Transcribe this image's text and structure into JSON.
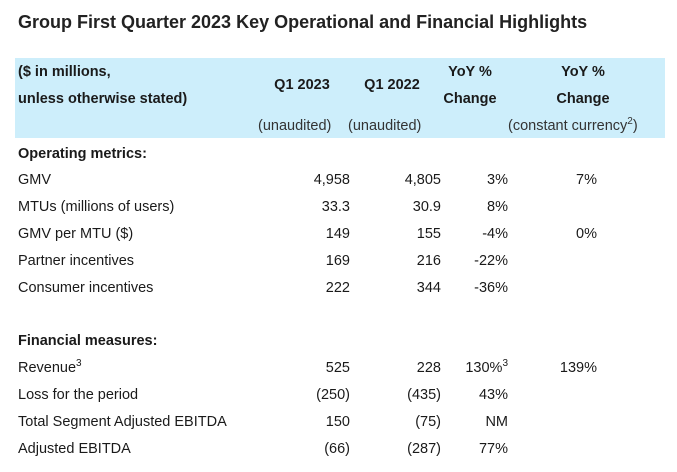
{
  "title": "Group First Quarter 2023 Key Operational and Financial Highlights",
  "header": {
    "label_line1": "($ in millions,",
    "label_line2": "unless otherwise stated)",
    "col_q1_2023": "Q1 2023",
    "col_q1_2022": "Q1 2022",
    "col_yoy_line1": "YoY %",
    "col_yoy_line2": "Change",
    "col_yoy_cc_line1": "YoY %",
    "col_yoy_cc_line2": "Change",
    "unaudited_2023": "(unaudited)",
    "unaudited_2022": "(unaudited)",
    "constant_currency": "(constant currency",
    "constant_currency_sup": "2",
    "constant_currency_close": ")"
  },
  "sections": {
    "operating_title": "Operating metrics:",
    "financial_title": "Financial measures:"
  },
  "operating_rows": [
    {
      "label": "GMV",
      "label_sup": "",
      "q1_2023": "4,958",
      "q1_2022": "4,805",
      "yoy": "3%",
      "yoy_sup": "",
      "yoy_cc": "7%"
    },
    {
      "label": "MTUs (millions of users)",
      "label_sup": "",
      "q1_2023": "33.3",
      "q1_2022": "30.9",
      "yoy": "8%",
      "yoy_sup": "",
      "yoy_cc": ""
    },
    {
      "label": "GMV per MTU ($)",
      "label_sup": "",
      "q1_2023": "149",
      "q1_2022": "155",
      "yoy": "-4%",
      "yoy_sup": "",
      "yoy_cc": "0%"
    },
    {
      "label": "Partner incentives",
      "label_sup": "",
      "q1_2023": "169",
      "q1_2022": "216",
      "yoy": "-22%",
      "yoy_sup": "",
      "yoy_cc": ""
    },
    {
      "label": "Consumer incentives",
      "label_sup": "",
      "q1_2023": "222",
      "q1_2022": "344",
      "yoy": "-36%",
      "yoy_sup": "",
      "yoy_cc": ""
    }
  ],
  "financial_rows": [
    {
      "label": "Revenue",
      "label_sup": "3",
      "q1_2023": "525",
      "q1_2022": "228",
      "yoy": "130%",
      "yoy_sup": "3",
      "yoy_cc": "139%"
    },
    {
      "label": "Loss for the period",
      "label_sup": "",
      "q1_2023": "(250)",
      "q1_2022": "(435)",
      "yoy": "43%",
      "yoy_sup": "",
      "yoy_cc": ""
    },
    {
      "label": "Total Segment Adjusted EBITDA",
      "label_sup": "",
      "q1_2023": "150",
      "q1_2022": "(75)",
      "yoy": "NM",
      "yoy_sup": "",
      "yoy_cc": ""
    },
    {
      "label": "Adjusted EBITDA",
      "label_sup": "",
      "q1_2023": "(66)",
      "q1_2022": "(287)",
      "yoy": "77%",
      "yoy_sup": "",
      "yoy_cc": ""
    }
  ]
}
